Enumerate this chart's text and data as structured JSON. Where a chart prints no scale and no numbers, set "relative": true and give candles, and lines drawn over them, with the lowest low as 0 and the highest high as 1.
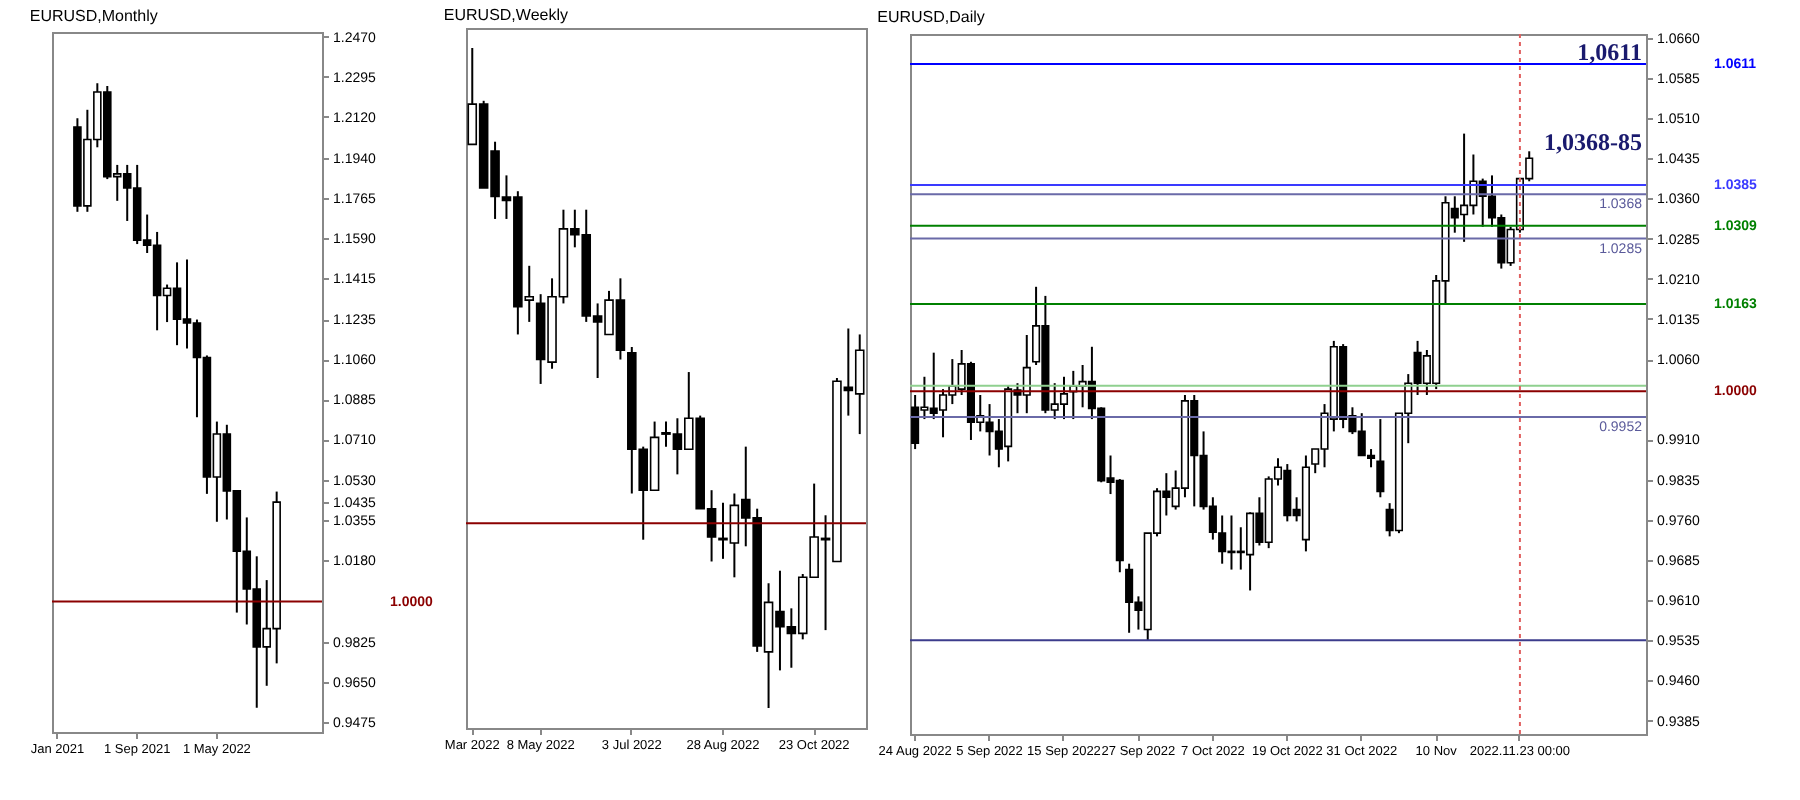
{
  "chart_data": [
    {
      "type": "candlestick",
      "title": "EURUSD,Monthly",
      "categories": [
        "Jan 2021",
        null,
        null,
        null,
        null,
        null,
        null,
        null,
        "1 Sep 2021",
        null,
        null,
        null,
        null,
        null,
        null,
        null,
        "1 May 2022",
        null,
        null,
        null,
        null,
        null,
        null,
        null,
        null,
        null,
        null
      ],
      "ohlc": [
        null,
        null,
        [
          1.2075,
          1.2113,
          1.1704,
          1.173
        ],
        [
          1.173,
          1.215,
          1.1704,
          1.202
        ],
        [
          1.202,
          1.2266,
          1.1986,
          1.2228
        ],
        [
          1.2228,
          1.2254,
          1.1847,
          1.1858
        ],
        [
          1.1858,
          1.1909,
          1.1752,
          1.187
        ],
        [
          1.187,
          1.1909,
          1.1664,
          1.1808
        ],
        [
          1.1808,
          1.1909,
          1.1563,
          1.158
        ],
        [
          1.158,
          1.1692,
          1.1524,
          1.1558
        ],
        [
          1.1558,
          1.1616,
          1.1186,
          1.1338
        ],
        [
          1.1338,
          1.1386,
          1.1222,
          1.137
        ],
        [
          1.137,
          1.1483,
          1.1121,
          1.1235
        ],
        [
          1.1235,
          1.1495,
          1.1106,
          1.1218
        ],
        [
          1.1218,
          1.1233,
          1.0806,
          1.1067
        ],
        [
          1.1067,
          1.1076,
          1.0471,
          1.0545
        ],
        [
          1.0545,
          1.0787,
          1.0349,
          1.0733
        ],
        [
          1.0733,
          1.0773,
          1.0359,
          1.0484
        ],
        [
          1.0484,
          1.0486,
          0.9952,
          1.022
        ],
        [
          1.022,
          1.0368,
          0.99,
          1.0055
        ],
        [
          1.0055,
          1.0198,
          0.9536,
          0.9802
        ],
        [
          0.9802,
          1.0094,
          0.9632,
          0.9882
        ],
        [
          0.9882,
          1.0481,
          0.973,
          1.0435
        ],
        null,
        null,
        null,
        null
      ],
      "ylim": [
        0.943,
        1.249
      ],
      "yticks": [
        {
          "value": 1.247,
          "label": "1.2470"
        },
        {
          "value": 1.2295,
          "label": "1.2295"
        },
        {
          "value": 1.212,
          "label": "1.2120"
        },
        {
          "value": 1.194,
          "label": "1.1940"
        },
        {
          "value": 1.1765,
          "label": "1.1765"
        },
        {
          "value": 1.159,
          "label": "1.1590"
        },
        {
          "value": 1.1415,
          "label": "1.1415"
        },
        {
          "value": 1.1235,
          "label": "1.1235"
        },
        {
          "value": 1.106,
          "label": "1.1060"
        },
        {
          "value": 1.0885,
          "label": "1.0885"
        },
        {
          "value": 1.071,
          "label": "1.0710"
        },
        {
          "value": 1.053,
          "label": "1.0530"
        },
        {
          "value": 1.0435,
          "label": "1.0435"
        },
        {
          "value": 1.0355,
          "label": "1.0355"
        },
        {
          "value": 1.018,
          "label": "1.0180"
        },
        {
          "value": 0.9825,
          "label": "0.9825"
        },
        {
          "value": 0.965,
          "label": "0.9650"
        },
        {
          "value": 0.9475,
          "label": "0.9475"
        }
      ],
      "ref_lines": [
        {
          "axis": "y",
          "value": 1.0,
          "label": "1.0000",
          "color": "#8b0000"
        }
      ]
    },
    {
      "type": "candlestick",
      "title": "EURUSD,Weekly",
      "relative": true,
      "categories": [
        "Mar 2022",
        null,
        null,
        null,
        null,
        null,
        "8 May 2022",
        null,
        null,
        null,
        null,
        null,
        null,
        null,
        "3 Jul 2022",
        null,
        null,
        null,
        null,
        null,
        null,
        null,
        "28 Aug 2022",
        null,
        null,
        null,
        null,
        null,
        null,
        null,
        "23 Oct 2022",
        null,
        null,
        null,
        null
      ],
      "ohlc": [
        [
          0.854,
          1.0,
          0.854,
          0.915
        ],
        [
          0.915,
          0.92,
          0.788,
          0.788
        ],
        [
          0.844,
          0.858,
          0.741,
          0.775
        ],
        [
          0.774,
          0.807,
          0.741,
          0.769
        ],
        [
          0.774,
          0.783,
          0.566,
          0.608
        ],
        [
          0.618,
          0.67,
          0.585,
          0.623
        ],
        [
          0.613,
          0.627,
          0.491,
          0.528
        ],
        [
          0.524,
          0.651,
          0.514,
          0.623
        ],
        [
          0.623,
          0.755,
          0.613,
          0.726
        ],
        [
          0.726,
          0.755,
          0.698,
          0.717
        ],
        [
          0.717,
          0.755,
          0.585,
          0.594
        ],
        [
          0.594,
          0.613,
          0.5,
          0.585
        ],
        [
          0.566,
          0.632,
          0.566,
          0.618
        ],
        [
          0.618,
          0.651,
          0.528,
          0.542
        ],
        [
          0.538,
          0.547,
          0.325,
          0.392
        ],
        [
          0.392,
          0.396,
          0.255,
          0.33
        ],
        [
          0.33,
          0.434,
          0.33,
          0.41
        ],
        [
          0.415,
          0.434,
          0.396,
          0.417
        ],
        [
          0.415,
          0.439,
          0.354,
          0.392
        ],
        [
          0.392,
          0.509,
          0.392,
          0.439
        ],
        [
          0.439,
          0.443,
          0.302,
          0.302
        ],
        [
          0.302,
          0.33,
          0.222,
          0.259
        ],
        [
          0.257,
          0.311,
          0.226,
          0.255
        ],
        [
          0.25,
          0.325,
          0.198,
          0.307
        ],
        [
          0.316,
          0.396,
          0.245,
          0.288
        ],
        [
          0.288,
          0.302,
          0.085,
          0.094
        ],
        [
          0.085,
          0.189,
          0.0,
          0.16
        ],
        [
          0.146,
          0.208,
          0.057,
          0.123
        ],
        [
          0.123,
          0.151,
          0.061,
          0.113
        ],
        [
          0.113,
          0.203,
          0.104,
          0.198
        ],
        [
          0.198,
          0.34,
          0.198,
          0.259
        ],
        [
          0.257,
          0.292,
          0.118,
          0.255
        ],
        [
          0.222,
          0.5,
          0.222,
          0.495
        ],
        [
          0.486,
          0.575,
          0.443,
          0.481
        ],
        [
          0.476,
          0.566,
          0.415,
          0.542
        ]
      ],
      "ref_lines": [
        {
          "axis": "y",
          "value": 0.28,
          "color": "#8b0000"
        }
      ]
    },
    {
      "type": "candlestick",
      "title": "EURUSD,Daily",
      "categories": [
        "24 Aug 2022",
        null,
        null,
        null,
        null,
        null,
        null,
        null,
        "5 Sep 2022",
        null,
        null,
        null,
        null,
        null,
        null,
        null,
        "15 Sep 2022",
        null,
        null,
        null,
        null,
        null,
        null,
        null,
        "27 Sep 2022",
        null,
        null,
        null,
        null,
        null,
        null,
        null,
        "7 Oct 2022",
        null,
        null,
        null,
        null,
        null,
        null,
        null,
        "19 Oct 2022",
        null,
        null,
        null,
        null,
        null,
        null,
        null,
        "31 Oct 2022",
        null,
        null,
        null,
        null,
        null,
        null,
        null,
        "10 Nov",
        null,
        null,
        null,
        null,
        null,
        null,
        null,
        null,
        "2022.11.23 00:00",
        null,
        null,
        null,
        null,
        null,
        null,
        null,
        null,
        null,
        null,
        null,
        null,
        null
      ],
      "ohlc": [
        [
          0.997,
          0.9993,
          0.9892,
          0.9903
        ],
        [
          0.9965,
          1.0027,
          0.9948,
          0.997
        ],
        [
          0.9968,
          1.0072,
          0.9948,
          0.9959
        ],
        [
          0.9965,
          1.0004,
          0.9914,
          0.9993
        ],
        [
          0.9993,
          1.006,
          0.9976,
          1.001
        ],
        [
          1.0004,
          1.0077,
          0.9993,
          1.0051
        ],
        [
          1.0051,
          1.0055,
          0.9909,
          0.9942
        ],
        [
          0.9942,
          0.9993,
          0.9925,
          0.9954
        ],
        [
          0.9942,
          0.9976,
          0.988,
          0.9925
        ],
        [
          0.9925,
          0.9948,
          0.9858,
          0.9892
        ],
        [
          0.9897,
          1.001,
          0.9869,
          1.0004
        ],
        [
          1.0002,
          1.0015,
          0.9959,
          0.9993
        ],
        [
          0.9993,
          1.0105,
          0.9959,
          1.0044
        ],
        [
          1.0055,
          1.0195,
          1.0049,
          1.0122
        ],
        [
          1.0122,
          1.0178,
          0.9959,
          0.9965
        ],
        [
          0.9965,
          1.0015,
          0.9948,
          0.9976
        ],
        [
          0.9976,
          1.0027,
          0.9948,
          0.9995
        ],
        [
          0.9999,
          1.0038,
          0.9948,
          1.001
        ],
        [
          1.001,
          1.0049,
          0.997,
          1.0018
        ],
        [
          1.0018,
          1.0083,
          0.9948,
          0.9968
        ],
        [
          0.9968,
          0.997,
          0.983,
          0.9833
        ],
        [
          0.9838,
          0.988,
          0.9808,
          0.983
        ],
        [
          0.9833,
          0.9836,
          0.9662,
          0.9684
        ],
        [
          0.9667,
          0.9678,
          0.9549,
          0.9606
        ],
        [
          0.9606,
          0.9617,
          0.9555,
          0.9591
        ],
        [
          0.9555,
          0.9735,
          0.9535,
          0.9735
        ],
        [
          0.9735,
          0.9819,
          0.9729,
          0.9813
        ],
        [
          0.9813,
          0.9847,
          0.9768,
          0.9802
        ],
        [
          0.9785,
          0.9852,
          0.9779,
          0.9819
        ],
        [
          0.9819,
          0.9993,
          0.9802,
          0.9982
        ],
        [
          0.9982,
          0.9993,
          0.9785,
          0.988
        ],
        [
          0.988,
          0.9925,
          0.9779,
          0.9785
        ],
        [
          0.9785,
          0.9802,
          0.9723,
          0.9737
        ],
        [
          0.9735,
          0.9768,
          0.9678,
          0.9701
        ],
        [
          0.9701,
          0.9768,
          0.9667,
          0.9699
        ],
        [
          0.9701,
          0.9746,
          0.9667,
          0.9699
        ],
        [
          0.9695,
          0.9774,
          0.9628,
          0.9772
        ],
        [
          0.9772,
          0.9802,
          0.9712,
          0.9718
        ],
        [
          0.9718,
          0.9841,
          0.9707,
          0.9836
        ],
        [
          0.9836,
          0.9875,
          0.9824,
          0.9858
        ],
        [
          0.9852,
          0.9864,
          0.9757,
          0.9768
        ],
        [
          0.9779,
          0.9802,
          0.9757,
          0.9768
        ],
        [
          0.9723,
          0.988,
          0.9701,
          0.9858
        ],
        [
          0.9864,
          0.9892,
          0.9847,
          0.9892
        ],
        [
          0.9892,
          0.9976,
          0.9858,
          0.9959
        ],
        [
          0.9948,
          1.0094,
          0.9925,
          1.0083
        ],
        [
          1.0083,
          1.0088,
          0.9931,
          0.9948
        ],
        [
          0.9954,
          0.997,
          0.992,
          0.9925
        ],
        [
          0.9925,
          0.9959,
          0.988,
          0.988
        ],
        [
          0.988,
          0.9892,
          0.9858,
          0.9875
        ],
        [
          0.9869,
          0.9948,
          0.9802,
          0.9813
        ],
        [
          0.9779,
          0.9791,
          0.9729,
          0.974
        ],
        [
          0.974,
          0.9959,
          0.9735,
          0.9959
        ],
        [
          0.9959,
          1.0032,
          0.9903,
          1.0015
        ],
        [
          1.0072,
          1.0094,
          0.9993,
          1.0015
        ],
        [
          1.0015,
          1.0077,
          0.9993,
          1.0066
        ],
        [
          1.0015,
          1.0217,
          1.0004,
          1.0206
        ],
        [
          1.0206,
          1.0364,
          1.0161,
          1.0352
        ],
        [
          1.0341,
          1.0364,
          1.0296,
          1.0324
        ],
        [
          1.033,
          1.0481,
          1.0279,
          1.0347
        ],
        [
          1.0347,
          1.0442,
          1.033,
          1.0392
        ],
        [
          1.0392,
          1.0397,
          1.0307,
          1.0364
        ],
        [
          1.0364,
          1.0403,
          1.0307,
          1.0324
        ],
        [
          1.0324,
          1.033,
          1.0229,
          1.024
        ],
        [
          1.024,
          1.0307,
          1.0234,
          1.0302
        ],
        [
          1.0302,
          1.0397,
          1.0296,
          1.0397
        ],
        [
          1.0397,
          1.0448,
          1.0392,
          1.0435
        ],
        null,
        null,
        null,
        null,
        null,
        null,
        null,
        null,
        null,
        null,
        null,
        null
      ],
      "ylim": [
        0.936,
        1.0667
      ],
      "yticks": [
        {
          "value": 1.066,
          "label": "1.0660"
        },
        {
          "value": 1.0585,
          "label": "1.0585"
        },
        {
          "value": 1.051,
          "label": "1.0510"
        },
        {
          "value": 1.0435,
          "label": "1.0435"
        },
        {
          "value": 1.036,
          "label": "1.0360"
        },
        {
          "value": 1.0285,
          "label": "1.0285"
        },
        {
          "value": 1.021,
          "label": "1.0210"
        },
        {
          "value": 1.0135,
          "label": "1.0135"
        },
        {
          "value": 1.006,
          "label": "1.0060"
        },
        {
          "value": 0.991,
          "label": "0.9910"
        },
        {
          "value": 0.9835,
          "label": "0.9835"
        },
        {
          "value": 0.976,
          "label": "0.9760"
        },
        {
          "value": 0.9685,
          "label": "0.9685"
        },
        {
          "value": 0.961,
          "label": "0.9610"
        },
        {
          "value": 0.9535,
          "label": "0.9535"
        },
        {
          "value": 0.946,
          "label": "0.9460"
        },
        {
          "value": 0.9385,
          "label": "0.9385"
        }
      ],
      "ref_lines": [
        {
          "axis": "y",
          "value": 1.0611,
          "label": "1.0611",
          "color": "#0000ff"
        },
        {
          "axis": "y",
          "value": 1.0385,
          "label": "1.0385",
          "color": "#3a3aff"
        },
        {
          "axis": "y",
          "value": 1.0368,
          "color": "#6a6aa8"
        },
        {
          "axis": "y",
          "value": 1.0309,
          "label": "1.0309",
          "color": "#008000"
        },
        {
          "axis": "y",
          "value": 1.0285,
          "color": "#6a6aa8"
        },
        {
          "axis": "y",
          "value": 1.0163,
          "label": "1.0163",
          "color": "#008000"
        },
        {
          "axis": "y",
          "value": 1.001,
          "color": "#8fd08f"
        },
        {
          "axis": "y",
          "value": 1.0,
          "label": "1.0000",
          "color": "#8b0000"
        },
        {
          "axis": "y",
          "value": 0.9952,
          "color": "#6a6aa8"
        },
        {
          "axis": "y",
          "value": 0.9535,
          "color": "#3c3c8c"
        },
        {
          "axis": "x",
          "value": "2022.11.23 00:00",
          "color": "#e06060",
          "line_style": "dotted"
        }
      ],
      "annotations": [
        "1,0611",
        "1,0368-85",
        {
          "text": "1.0368",
          "y": 1.0368
        },
        {
          "text": "1.0285",
          "y": 1.0285
        },
        {
          "text": "0.9952",
          "y": 0.9952
        }
      ]
    }
  ]
}
